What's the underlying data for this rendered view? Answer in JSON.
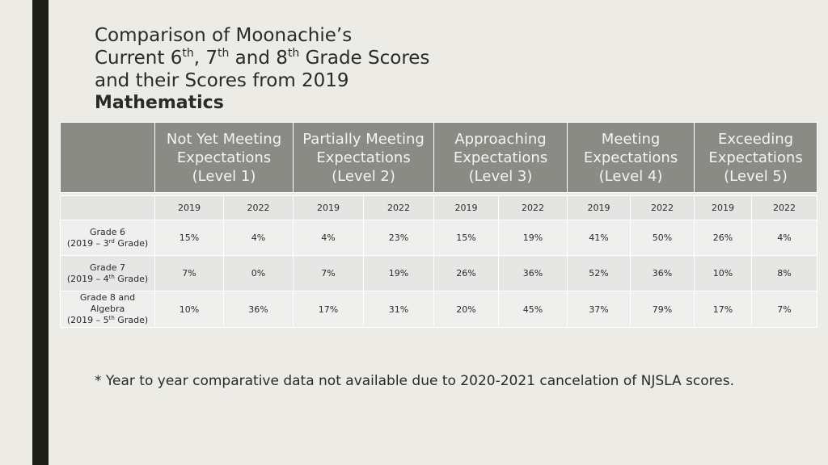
{
  "title": {
    "line1": "Comparison of Moonachie’s",
    "line2_a": "Current 6",
    "line2_sup1": "th",
    "line2_b": ", 7",
    "line2_sup2": "th",
    "line2_c": " and 8",
    "line2_sup3": "th",
    "line2_d": " Grade Scores",
    "line3": "and their Scores from 2019",
    "subject": "Mathematics"
  },
  "levels": [
    {
      "line1": "Not Yet Meeting",
      "line2": "Expectations",
      "line3": "(Level 1)"
    },
    {
      "line1": "Partially Meeting",
      "line2": "Expectations",
      "line3": "(Level 2)"
    },
    {
      "line1": "Approaching",
      "line2": "Expectations",
      "line3": "(Level 3)"
    },
    {
      "line1": "Meeting",
      "line2": "Expectations",
      "line3": "(Level 4)"
    },
    {
      "line1": "Exceeding",
      "line2": "Expectations",
      "line3": "(Level 5)"
    }
  ],
  "years": [
    "2019",
    "2022",
    "2019",
    "2022",
    "2019",
    "2022",
    "2019",
    "2022",
    "2019",
    "2022"
  ],
  "grades": [
    {
      "label_line1": "Grade 6",
      "label_line2_a": "(2019 – 3",
      "label_line2_sup": "rd",
      "label_line2_b": " Grade)",
      "values": [
        "15%",
        "4%",
        "4%",
        "23%",
        "15%",
        "19%",
        "41%",
        "50%",
        "26%",
        "4%"
      ]
    },
    {
      "label_line1": "Grade 7",
      "label_line2_a": "(2019 – 4",
      "label_line2_sup": "th",
      "label_line2_b": " Grade)",
      "values": [
        "7%",
        "0%",
        "7%",
        "19%",
        "26%",
        "36%",
        "52%",
        "36%",
        "10%",
        "8%"
      ]
    },
    {
      "label_line1": "Grade 8  and",
      "label_line1b": "Algebra",
      "label_line2_a": "(2019 – 5",
      "label_line2_sup": "th",
      "label_line2_b": " Grade)",
      "values": [
        "10%",
        "36%",
        "17%",
        "31%",
        "20%",
        "45%",
        "37%",
        "79%",
        "17%",
        "7%"
      ]
    }
  ],
  "footnote": "* Year to year comparative data not available due to 2020-2021 cancelation of NJSLA scores."
}
